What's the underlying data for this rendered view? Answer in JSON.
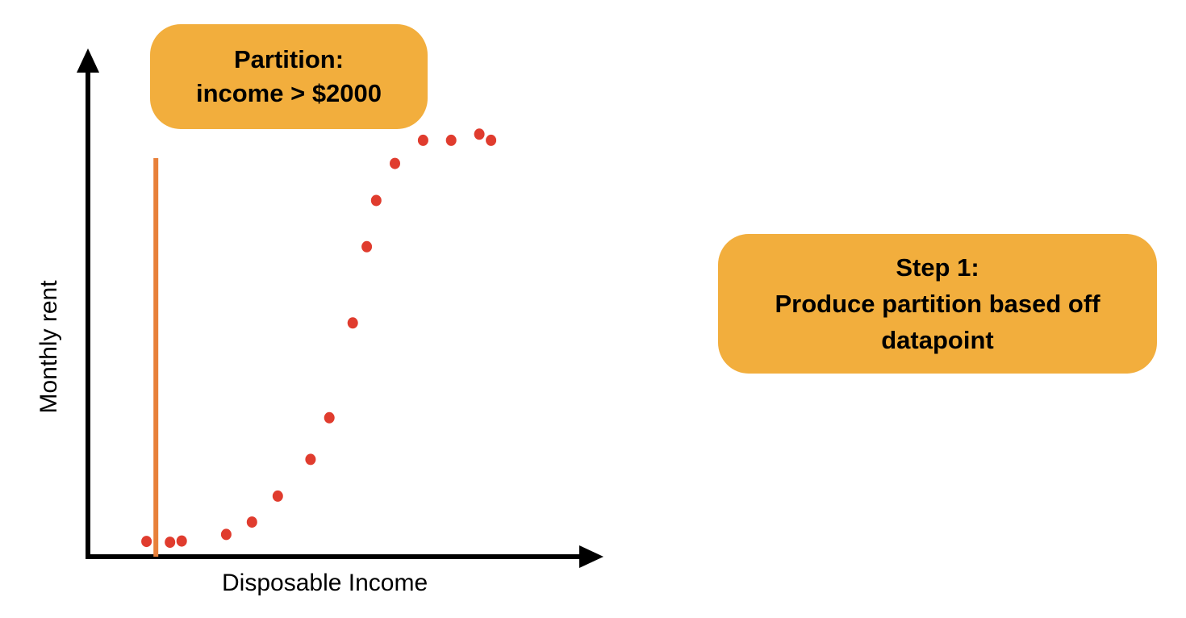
{
  "chart_data": {
    "type": "scatter",
    "xlabel": "Disposable Income",
    "ylabel": "Monthly rent",
    "marker_color": "#E03C2E",
    "partition_line_color": "#E8803A",
    "callout_color": "#F2AE3D",
    "points": [
      {
        "x": 1,
        "y": 0.4
      },
      {
        "x": 2,
        "y": 0.2
      },
      {
        "x": 2.5,
        "y": 0.5
      },
      {
        "x": 4.4,
        "y": 2.1
      },
      {
        "x": 5.5,
        "y": 5.1
      },
      {
        "x": 6.6,
        "y": 11.4
      },
      {
        "x": 8,
        "y": 20.3
      },
      {
        "x": 8.8,
        "y": 30.4
      },
      {
        "x": 9.8,
        "y": 53.4
      },
      {
        "x": 10.4,
        "y": 71.9
      },
      {
        "x": 10.8,
        "y": 83.1
      },
      {
        "x": 11.6,
        "y": 92.1
      },
      {
        "x": 12.8,
        "y": 97.7
      },
      {
        "x": 14,
        "y": 97.7
      },
      {
        "x": 15.2,
        "y": 99.2
      },
      {
        "x": 15.7,
        "y": 97.7
      }
    ],
    "partition_x": 1.4,
    "xlim": [
      -1.5,
      20.5
    ],
    "ylim": [
      -3.3,
      120
    ]
  },
  "partition_callout": {
    "line1": "Partition:",
    "line2": "income > $2000"
  },
  "step_callout": {
    "line1": "Step 1:",
    "line2": "Produce partition based off",
    "line3": "datapoint"
  }
}
